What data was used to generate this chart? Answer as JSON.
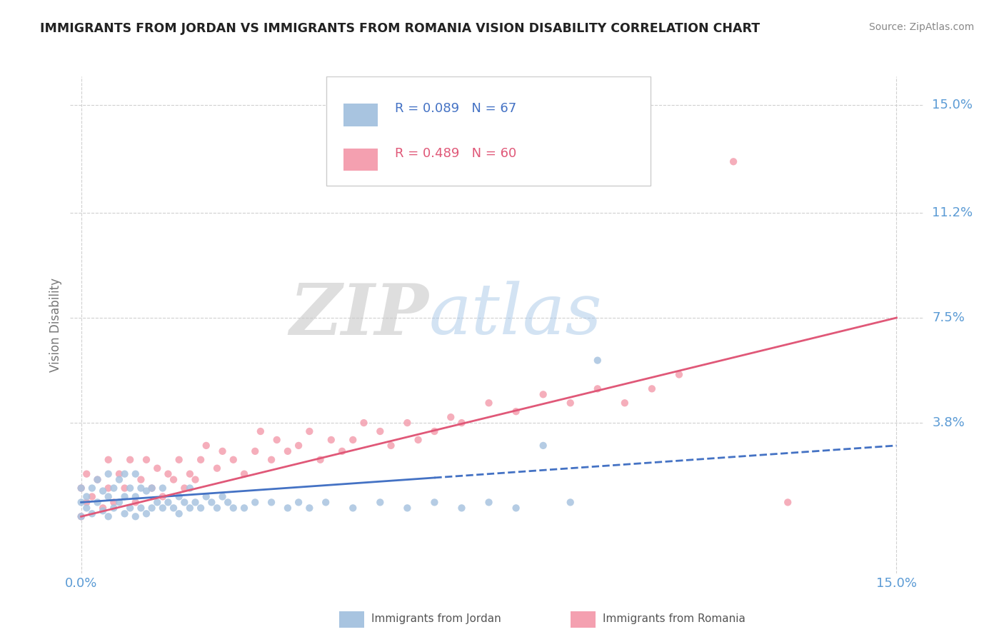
{
  "title": "IMMIGRANTS FROM JORDAN VS IMMIGRANTS FROM ROMANIA VISION DISABILITY CORRELATION CHART",
  "source": "Source: ZipAtlas.com",
  "ylabel": "Vision Disability",
  "legend_labels": [
    "Immigrants from Jordan",
    "Immigrants from Romania"
  ],
  "r_jordan": 0.089,
  "n_jordan": 67,
  "r_romania": 0.489,
  "n_romania": 60,
  "color_jordan": "#a8c4e0",
  "color_romania": "#f4a0b0",
  "line_color_jordan": "#4472c4",
  "line_color_romania": "#e05878",
  "ytick_labels": [
    "3.8%",
    "7.5%",
    "11.2%",
    "15.0%"
  ],
  "ytick_values": [
    0.038,
    0.075,
    0.112,
    0.15
  ],
  "xtick_labels": [
    "0.0%",
    "15.0%"
  ],
  "xtick_values": [
    0.0,
    0.15
  ],
  "xlim": [
    -0.002,
    0.155
  ],
  "ylim": [
    -0.015,
    0.16
  ],
  "watermark_zip": "ZIP",
  "watermark_atlas": "atlas",
  "background_color": "#ffffff",
  "grid_color": "#d0d0d0",
  "title_color": "#222222",
  "axis_label_color": "#5b9bd5",
  "jordan_scatter_x": [
    0.0,
    0.0,
    0.0,
    0.001,
    0.001,
    0.002,
    0.002,
    0.003,
    0.003,
    0.004,
    0.004,
    0.005,
    0.005,
    0.005,
    0.006,
    0.006,
    0.007,
    0.007,
    0.008,
    0.008,
    0.008,
    0.009,
    0.009,
    0.01,
    0.01,
    0.01,
    0.011,
    0.011,
    0.012,
    0.012,
    0.013,
    0.013,
    0.014,
    0.015,
    0.015,
    0.016,
    0.017,
    0.018,
    0.018,
    0.019,
    0.02,
    0.02,
    0.021,
    0.022,
    0.023,
    0.024,
    0.025,
    0.026,
    0.027,
    0.028,
    0.03,
    0.032,
    0.035,
    0.038,
    0.04,
    0.042,
    0.045,
    0.05,
    0.055,
    0.06,
    0.065,
    0.07,
    0.075,
    0.08,
    0.085,
    0.09,
    0.095
  ],
  "jordan_scatter_y": [
    0.005,
    0.01,
    0.015,
    0.008,
    0.012,
    0.006,
    0.015,
    0.01,
    0.018,
    0.007,
    0.014,
    0.005,
    0.012,
    0.02,
    0.008,
    0.015,
    0.01,
    0.018,
    0.006,
    0.012,
    0.02,
    0.008,
    0.015,
    0.005,
    0.012,
    0.02,
    0.008,
    0.015,
    0.006,
    0.014,
    0.008,
    0.015,
    0.01,
    0.008,
    0.015,
    0.01,
    0.008,
    0.012,
    0.006,
    0.01,
    0.008,
    0.015,
    0.01,
    0.008,
    0.012,
    0.01,
    0.008,
    0.012,
    0.01,
    0.008,
    0.008,
    0.01,
    0.01,
    0.008,
    0.01,
    0.008,
    0.01,
    0.008,
    0.01,
    0.008,
    0.01,
    0.008,
    0.01,
    0.008,
    0.03,
    0.01,
    0.06
  ],
  "romania_scatter_x": [
    0.0,
    0.0,
    0.001,
    0.001,
    0.002,
    0.003,
    0.004,
    0.005,
    0.005,
    0.006,
    0.007,
    0.008,
    0.009,
    0.01,
    0.011,
    0.012,
    0.013,
    0.014,
    0.015,
    0.016,
    0.017,
    0.018,
    0.019,
    0.02,
    0.021,
    0.022,
    0.023,
    0.025,
    0.026,
    0.028,
    0.03,
    0.032,
    0.033,
    0.035,
    0.036,
    0.038,
    0.04,
    0.042,
    0.044,
    0.046,
    0.048,
    0.05,
    0.052,
    0.055,
    0.057,
    0.06,
    0.062,
    0.065,
    0.068,
    0.07,
    0.075,
    0.08,
    0.085,
    0.09,
    0.095,
    0.1,
    0.105,
    0.11,
    0.12,
    0.13
  ],
  "romania_scatter_y": [
    0.005,
    0.015,
    0.01,
    0.02,
    0.012,
    0.018,
    0.008,
    0.015,
    0.025,
    0.01,
    0.02,
    0.015,
    0.025,
    0.01,
    0.018,
    0.025,
    0.015,
    0.022,
    0.012,
    0.02,
    0.018,
    0.025,
    0.015,
    0.02,
    0.018,
    0.025,
    0.03,
    0.022,
    0.028,
    0.025,
    0.02,
    0.028,
    0.035,
    0.025,
    0.032,
    0.028,
    0.03,
    0.035,
    0.025,
    0.032,
    0.028,
    0.032,
    0.038,
    0.035,
    0.03,
    0.038,
    0.032,
    0.035,
    0.04,
    0.038,
    0.045,
    0.042,
    0.048,
    0.045,
    0.05,
    0.045,
    0.05,
    0.055,
    0.13,
    0.01
  ],
  "jordan_line_x": [
    0.0,
    0.15
  ],
  "jordan_line_y": [
    0.01,
    0.03
  ],
  "romania_line_x": [
    0.0,
    0.15
  ],
  "romania_line_y": [
    0.005,
    0.075
  ]
}
